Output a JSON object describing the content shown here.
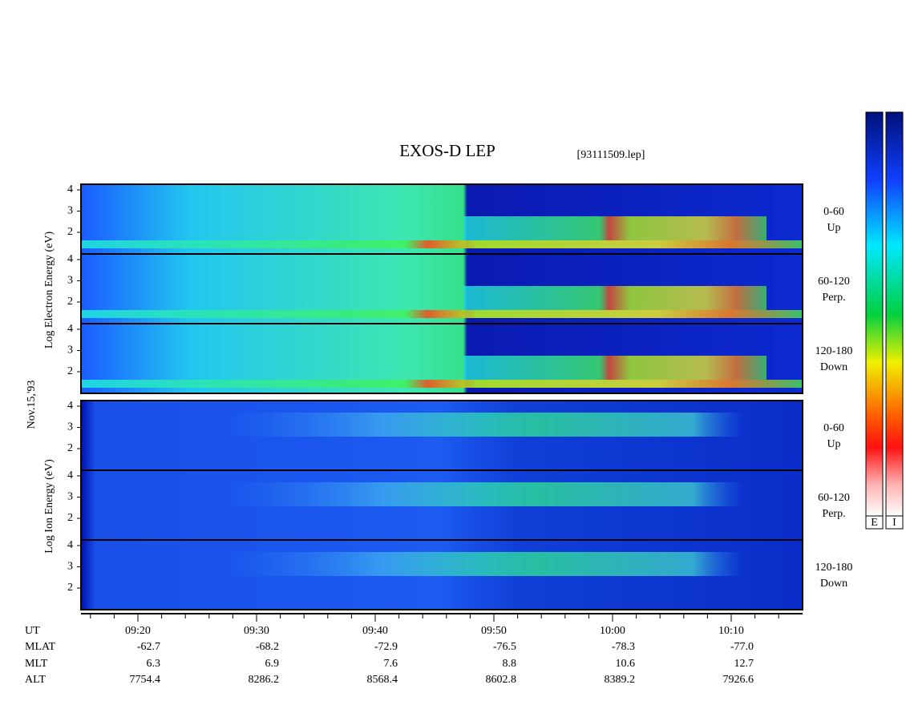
{
  "header": {
    "title": "EXOS-D LEP",
    "file": "[93111509.lep]"
  },
  "left_labels": {
    "electron": "Log  Electron  Energy (eV)",
    "date": "Nov.15,'93",
    "ion": "Log  Ion  Energy (eV)"
  },
  "panels": [
    {
      "ticks": [
        "4",
        "3",
        "2"
      ],
      "pitch": "0-60",
      "direction": "Up"
    },
    {
      "ticks": [
        "4",
        "3",
        "2"
      ],
      "pitch": "60-120",
      "direction": "Perp."
    },
    {
      "ticks": [
        "4",
        "3",
        "2"
      ],
      "pitch": "120-180",
      "direction": "Down"
    },
    {
      "ticks": [
        "4",
        "3",
        "2"
      ],
      "pitch": "0-60",
      "direction": "Up"
    },
    {
      "ticks": [
        "4",
        "3",
        "2"
      ],
      "pitch": "60-120",
      "direction": "Perp."
    },
    {
      "ticks": [
        "4",
        "3",
        "2"
      ],
      "pitch": "120-180",
      "direction": "Down"
    }
  ],
  "footer": {
    "row_labels": [
      "UT",
      "MLAT",
      "MLT",
      "ALT"
    ],
    "columns": [
      [
        "09:20",
        "-62.7",
        "6.3",
        "7754.4"
      ],
      [
        "09:30",
        "-68.2",
        "6.9",
        "8286.2"
      ],
      [
        "09:40",
        "-72.9",
        "7.6",
        "8568.4"
      ],
      [
        "09:50",
        "-76.5",
        "8.8",
        "8602.8"
      ],
      [
        "10:00",
        "-78.3",
        "10.6",
        "8389.2"
      ],
      [
        "10:10",
        "-77.0",
        "12.7",
        "7926.6"
      ]
    ]
  },
  "colorbars": [
    "E",
    "I"
  ]
}
